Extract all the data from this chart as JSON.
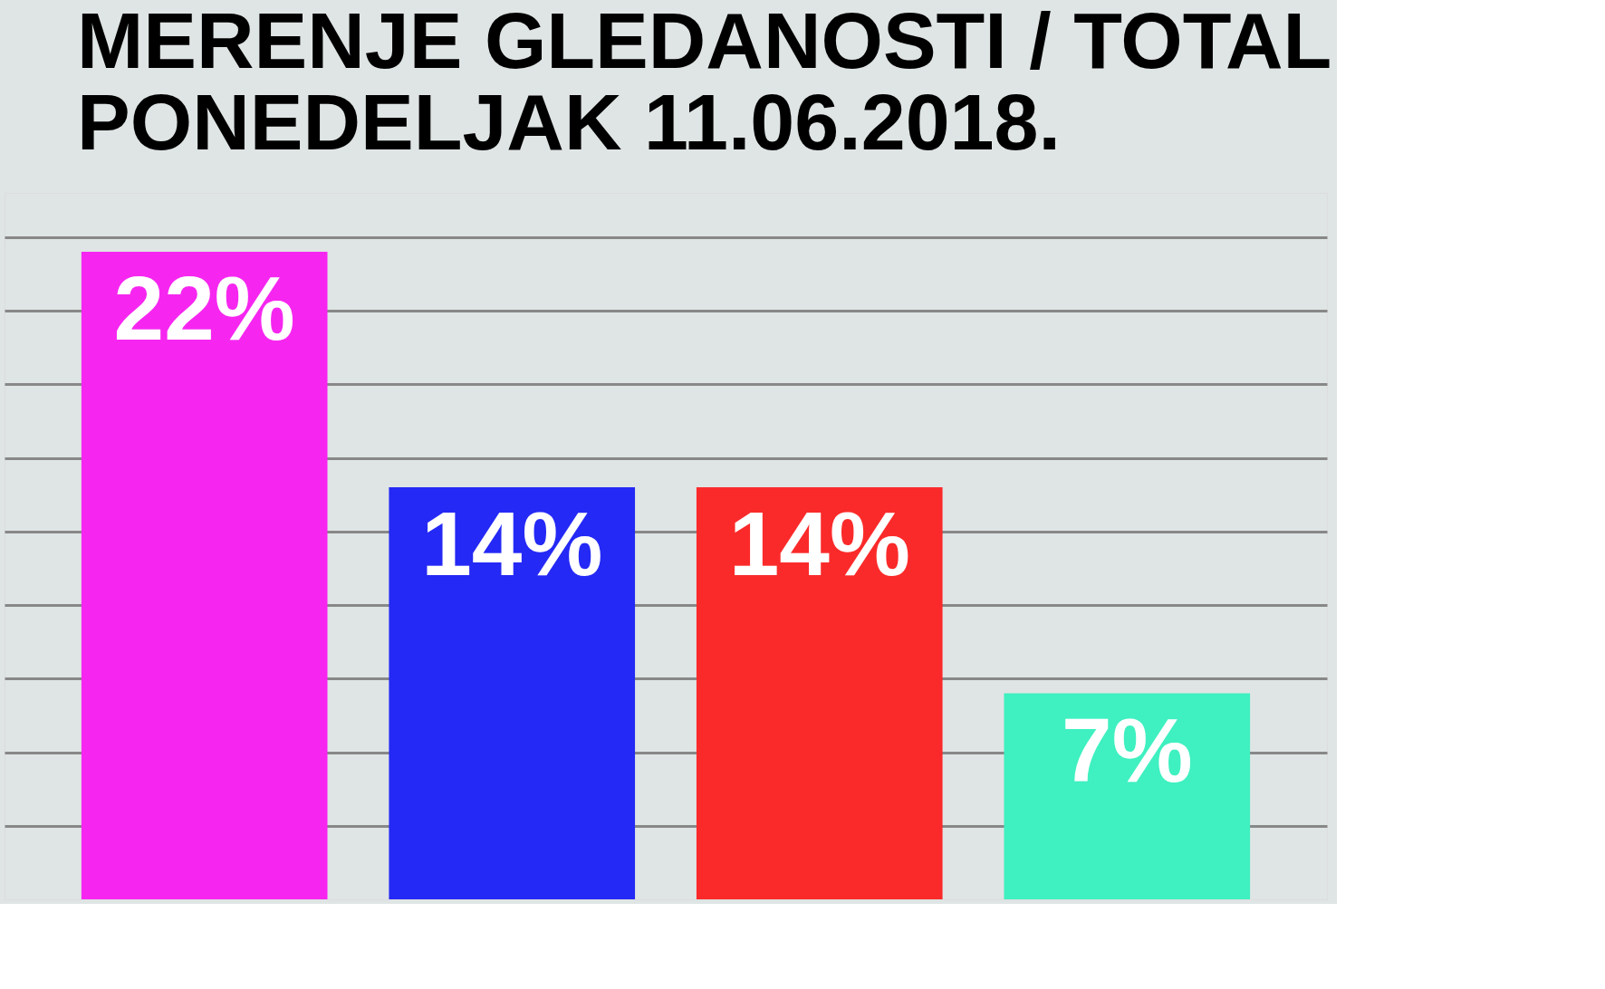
{
  "chart_data": {
    "type": "bar",
    "title": [
      "MERENJE GLEDANOSTI / TOTAL",
      "PONEDELJAK 11.06.2018."
    ],
    "categories": [
      null,
      null,
      null,
      null
    ],
    "values": [
      22,
      14,
      14,
      7
    ],
    "colors": [
      "#f626f0",
      "#2429f5",
      "#fb2a2a",
      "#3ff0c0"
    ],
    "value_labels": [
      "22%",
      "14%",
      "14%",
      "7%"
    ],
    "ylim": [
      0,
      24
    ],
    "yticks": [
      {
        "value": 2.5,
        "label": null
      },
      {
        "value": 5,
        "label": null
      },
      {
        "value": 7.5,
        "label": null
      },
      {
        "value": 10,
        "label": null
      },
      {
        "value": 12.5,
        "label": null
      },
      {
        "value": 15,
        "label": null
      },
      {
        "value": 17.5,
        "label": null
      },
      {
        "value": 20,
        "label": null
      },
      {
        "value": 22.5,
        "label": null
      }
    ],
    "grid": "y",
    "tick_labels": false
  }
}
